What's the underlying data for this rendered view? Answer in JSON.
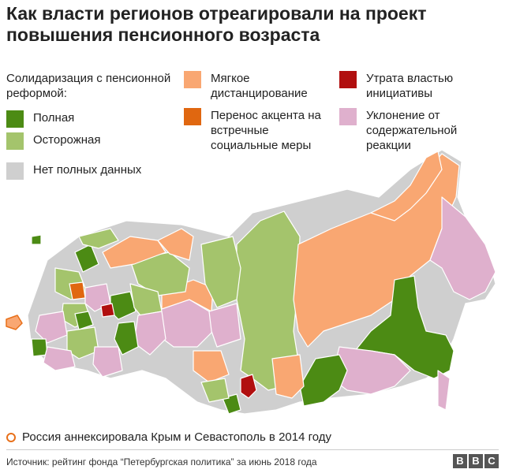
{
  "title": "Как власти регионов отреагировали на проект повышения пенсионного возраста",
  "legend": {
    "heading": "Солидаризация с пенсионной реформой:",
    "items": [
      {
        "label": "Полная",
        "color": "#4c8b14"
      },
      {
        "label": "Осторожная",
        "color": "#a4c46c"
      },
      {
        "label": "Нет полных данных",
        "color": "#cfcfcf"
      },
      {
        "label": "Мягкое дистанцирование",
        "color": "#f9a772"
      },
      {
        "label": "Перенос акцента на встречные социальные меры",
        "color": "#e06710"
      },
      {
        "label": "Утрата властью инициативы",
        "color": "#b10f0f"
      },
      {
        "label": "Уклонение от содержательной реакции",
        "color": "#dfb0cd"
      }
    ]
  },
  "annexation_note": "Россия аннексировала Крым и Севастополь в 2014 году",
  "annexation_color": "#e8701a",
  "source": "Источник: рейтинг фонда “Петербургская политика” за июнь 2018 года",
  "brand": [
    "B",
    "B",
    "C"
  ]
}
